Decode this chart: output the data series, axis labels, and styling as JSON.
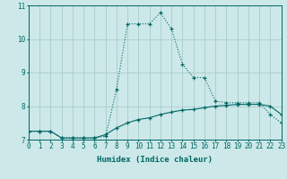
{
  "xlabel": "Humidex (Indice chaleur)",
  "ylabel": "",
  "bg_color": "#cce8e8",
  "grid_color": "#aacccc",
  "line_color": "#006666",
  "x_max": 23,
  "x_min": 0,
  "y_min": 7,
  "y_max": 11,
  "curve1_x": [
    0,
    1,
    2,
    3,
    4,
    5,
    6,
    7,
    8,
    9,
    10,
    11,
    12,
    13,
    14,
    15,
    16,
    17,
    18,
    19,
    20,
    21,
    22,
    23
  ],
  "curve1_y": [
    7.25,
    7.25,
    7.25,
    7.05,
    7.05,
    7.05,
    7.05,
    7.1,
    8.5,
    10.45,
    10.45,
    10.45,
    10.78,
    10.3,
    9.25,
    8.85,
    8.85,
    8.15,
    8.1,
    8.1,
    8.1,
    8.1,
    7.75,
    7.5
  ],
  "curve2_x": [
    0,
    1,
    2,
    3,
    4,
    5,
    6,
    7,
    8,
    9,
    10,
    11,
    12,
    13,
    14,
    15,
    16,
    17,
    18,
    19,
    20,
    21,
    22,
    23
  ],
  "curve2_y": [
    7.25,
    7.25,
    7.25,
    7.05,
    7.05,
    7.05,
    7.05,
    7.15,
    7.35,
    7.5,
    7.6,
    7.65,
    7.75,
    7.82,
    7.88,
    7.9,
    7.95,
    8.0,
    8.02,
    8.05,
    8.05,
    8.05,
    8.0,
    7.75
  ]
}
